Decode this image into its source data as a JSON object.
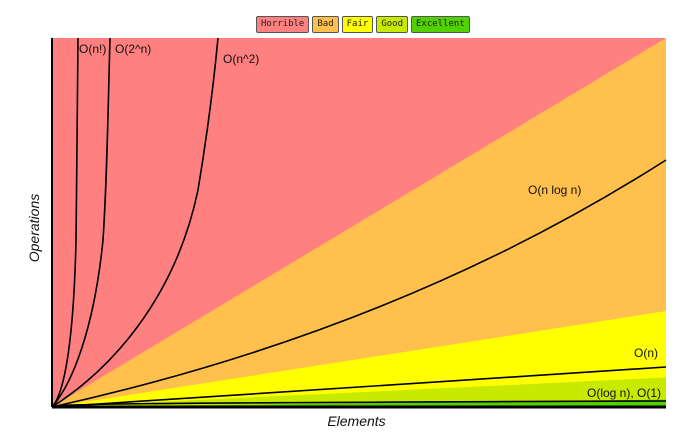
{
  "legend": [
    {
      "label": "Horrible",
      "color": "#ff8080"
    },
    {
      "label": "Bad",
      "color": "#ffc04d"
    },
    {
      "label": "Fair",
      "color": "#ffff00"
    },
    {
      "label": "Good",
      "color": "#c8ea00"
    },
    {
      "label": "Excellent",
      "color": "#53d000"
    }
  ],
  "chart_data": {
    "type": "area",
    "title": "",
    "xlabel": "Elements",
    "ylabel": "Operations",
    "grid": false,
    "axis_ticks": false,
    "legend_position": "top-center",
    "regions": [
      {
        "name": "Horrible",
        "color": "#ff8080"
      },
      {
        "name": "Bad",
        "color": "#ffc04d"
      },
      {
        "name": "Fair",
        "color": "#ffff00"
      },
      {
        "name": "Good",
        "color": "#c8ea00"
      },
      {
        "name": "Excellent",
        "color": "#53d000"
      }
    ],
    "curves": [
      {
        "label": "O(n!)",
        "function": "factorial"
      },
      {
        "label": "O(2^n)",
        "function": "exponential"
      },
      {
        "label": "O(n^2)",
        "function": "quadratic"
      },
      {
        "label": "O(n log n)",
        "function": "linearithmic"
      },
      {
        "label": "O(n)",
        "function": "linear"
      },
      {
        "label": "O(log n), O(1)",
        "function": "logarithmic-constant"
      }
    ]
  }
}
